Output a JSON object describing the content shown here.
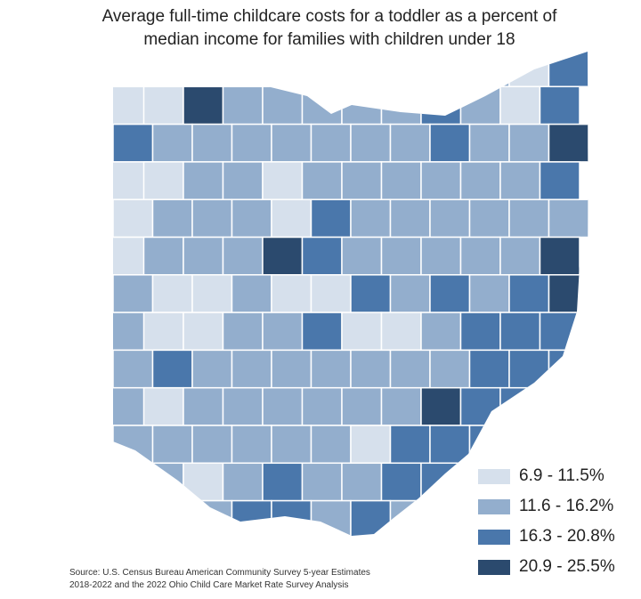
{
  "title": {
    "line1": "Average full-time childcare costs for a toddler as a percent of",
    "line2": "median income for families with children under 18"
  },
  "legend": [
    {
      "label": "6.9 - 11.5%",
      "color": "#d6e0ec"
    },
    {
      "label": "11.6 - 16.2%",
      "color": "#93aecd"
    },
    {
      "label": "16.3 - 20.8%",
      "color": "#4a77ab"
    },
    {
      "label": "20.9 - 25.5%",
      "color": "#2b4a6e"
    }
  ],
  "source": {
    "line1": "Source: U.S. Census Bureau American Community Survey 5-year Estimates",
    "line2": "2018-2022 and the 2022 Ohio Child Care Market Rate Survey Analysis"
  },
  "map_data": {
    "region": "Ohio counties",
    "class_grid": [
      [
        -1,
        -1,
        -1,
        -1,
        -1,
        -1,
        -1,
        -1,
        -1,
        1,
        0,
        2
      ],
      [
        0,
        0,
        3,
        1,
        1,
        1,
        1,
        1,
        2,
        1,
        0,
        2
      ],
      [
        2,
        1,
        1,
        1,
        1,
        1,
        1,
        1,
        2,
        1,
        1,
        3
      ],
      [
        0,
        0,
        1,
        1,
        0,
        1,
        1,
        1,
        1,
        1,
        1,
        2
      ],
      [
        0,
        1,
        1,
        1,
        0,
        2,
        1,
        1,
        1,
        1,
        1,
        1
      ],
      [
        0,
        1,
        1,
        1,
        3,
        2,
        1,
        1,
        1,
        1,
        1,
        3
      ],
      [
        1,
        0,
        0,
        1,
        0,
        0,
        2,
        1,
        2,
        1,
        2,
        3
      ],
      [
        1,
        0,
        0,
        1,
        1,
        2,
        0,
        0,
        1,
        2,
        2,
        2
      ],
      [
        1,
        2,
        1,
        1,
        1,
        1,
        1,
        1,
        1,
        2,
        2,
        2
      ],
      [
        1,
        0,
        1,
        1,
        1,
        1,
        1,
        1,
        3,
        2,
        2,
        2
      ],
      [
        1,
        1,
        1,
        1,
        1,
        1,
        0,
        2,
        2,
        2,
        1,
        1
      ],
      [
        1,
        1,
        0,
        1,
        2,
        1,
        1,
        2,
        2,
        1,
        1,
        1
      ],
      [
        1,
        1,
        1,
        2,
        2,
        1,
        2,
        1,
        1,
        1,
        1,
        1
      ]
    ]
  }
}
